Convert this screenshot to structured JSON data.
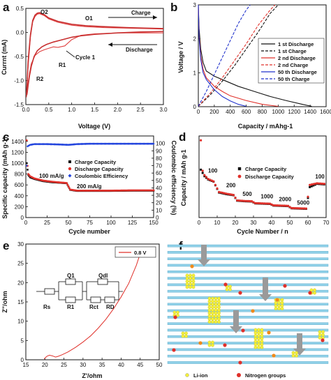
{
  "panels": {
    "a": {
      "letter": "a"
    },
    "b": {
      "letter": "b"
    },
    "c": {
      "letter": "c"
    },
    "d": {
      "letter": "d"
    },
    "e": {
      "letter": "e"
    },
    "f": {
      "letter": "f"
    }
  },
  "chart_data": [
    {
      "id": "a",
      "type": "line",
      "title": "",
      "xlabel": "Voltage (V)",
      "ylabel": "Currnt (mA)",
      "xlim": [
        0,
        3.0
      ],
      "ylim": [
        -1.5,
        0.5
      ],
      "xticks": [
        "0.0",
        "0.5",
        "1.0",
        "1.5",
        "2.0",
        "2.5",
        "3.0"
      ],
      "yticks": [
        "0.5",
        "0.0",
        "-0.5",
        "-1.0",
        "-1.5"
      ],
      "annotations": [
        "O2",
        "O1",
        "Charge",
        "Discharge",
        "R1",
        "R2",
        "Cycle 1"
      ],
      "series": [
        {
          "role": "cycle-1-discharge",
          "color": "#e04040",
          "x": [
            3.0,
            2.5,
            2.0,
            1.5,
            1.2,
            1.0,
            0.85,
            0.7,
            0.6,
            0.5,
            0.4,
            0.3,
            0.2,
            0.12,
            0.08,
            0.05,
            0.03,
            0.01
          ],
          "y": [
            -0.01,
            -0.01,
            -0.01,
            -0.03,
            -0.06,
            -0.15,
            -0.28,
            -0.31,
            -0.3,
            -0.33,
            -0.36,
            -0.4,
            -0.48,
            -0.65,
            -0.85,
            -1.05,
            -1.25,
            -1.35
          ]
        },
        {
          "role": "cycle-1-charge",
          "color": "#e04040",
          "x": [
            0.01,
            0.05,
            0.1,
            0.15,
            0.2,
            0.25,
            0.3,
            0.4,
            0.5,
            0.7,
            1.0,
            1.3,
            1.7,
            2.2,
            2.6,
            3.0
          ],
          "y": [
            -1.3,
            -0.7,
            -0.1,
            0.22,
            0.33,
            0.38,
            0.39,
            0.35,
            0.28,
            0.21,
            0.15,
            0.12,
            0.1,
            0.09,
            0.08,
            0.07
          ]
        },
        {
          "role": "later-cycles-discharge",
          "color": "#c83030",
          "x": [
            3.0,
            2.5,
            2.0,
            1.5,
            1.2,
            1.0,
            0.8,
            0.6,
            0.45,
            0.35,
            0.25,
            0.18,
            0.12,
            0.08,
            0.05,
            0.03,
            0.02
          ],
          "y": [
            0.02,
            0.01,
            -0.01,
            -0.04,
            -0.07,
            -0.1,
            -0.15,
            -0.2,
            -0.25,
            -0.3,
            -0.38,
            -0.5,
            -0.7,
            -0.9,
            -1.1,
            -1.25,
            -1.3
          ]
        },
        {
          "role": "later-cycles-charge",
          "color": "#c83030",
          "x": [
            0.02,
            0.05,
            0.1,
            0.15,
            0.2,
            0.25,
            0.3,
            0.4,
            0.5,
            0.7,
            1.0,
            1.3,
            1.7,
            2.2,
            2.6,
            3.0
          ],
          "y": [
            -1.2,
            -0.6,
            -0.05,
            0.25,
            0.36,
            0.4,
            0.41,
            0.37,
            0.3,
            0.23,
            0.17,
            0.14,
            0.12,
            0.1,
            0.09,
            0.08
          ]
        }
      ]
    },
    {
      "id": "b",
      "type": "line",
      "title": "",
      "xlabel": "Capacity / mAhg-1",
      "ylabel": "Voltage / V",
      "xlim": [
        0,
        1600
      ],
      "ylim": [
        0,
        3
      ],
      "xticks": [
        "0",
        "200",
        "400",
        "600",
        "800",
        "1000",
        "1200",
        "1400",
        "1600"
      ],
      "yticks": [
        "0",
        "1",
        "2",
        "3"
      ],
      "series": [
        {
          "name": "1 st Discharge",
          "color": "#111111",
          "dash": "solid",
          "x": [
            0,
            10,
            30,
            60,
            100,
            200,
            300,
            400,
            500,
            700,
            900,
            1100,
            1300,
            1420
          ],
          "y": [
            3.0,
            2.3,
            1.7,
            1.3,
            1.05,
            0.9,
            0.8,
            0.7,
            0.6,
            0.45,
            0.3,
            0.18,
            0.07,
            0.01
          ]
        },
        {
          "name": "1 st Charge",
          "color": "#111111",
          "dash": "dashed",
          "x": [
            0,
            150,
            300,
            450,
            600,
            750,
            900,
            1000
          ],
          "y": [
            0.01,
            0.35,
            0.75,
            1.2,
            1.7,
            2.2,
            2.75,
            3.0
          ]
        },
        {
          "name": "2 nd Discharge",
          "color": "#e0302a",
          "dash": "solid",
          "x": [
            0,
            10,
            30,
            60,
            100,
            200,
            300,
            400,
            600,
            800,
            1000
          ],
          "y": [
            3.0,
            2.1,
            1.5,
            1.1,
            0.85,
            0.6,
            0.45,
            0.32,
            0.18,
            0.07,
            0.01
          ]
        },
        {
          "name": "2 nd Charge",
          "color": "#e0302a",
          "dash": "dashed",
          "x": [
            0,
            150,
            300,
            450,
            600,
            750,
            900,
            960
          ],
          "y": [
            0.01,
            0.4,
            0.85,
            1.35,
            1.85,
            2.4,
            2.85,
            3.0
          ]
        },
        {
          "name": "50 th Discharge",
          "color": "#2233cc",
          "dash": "solid",
          "x": [
            0,
            10,
            30,
            60,
            100,
            200,
            300,
            400,
            500,
            600
          ],
          "y": [
            3.0,
            2.0,
            1.4,
            1.0,
            0.8,
            0.5,
            0.3,
            0.17,
            0.07,
            0.01
          ]
        },
        {
          "name": "50 th Charge",
          "color": "#2233cc",
          "dash": "dashed",
          "x": [
            0,
            100,
            200,
            300,
            400,
            500,
            600,
            650
          ],
          "y": [
            0.01,
            0.45,
            0.95,
            1.45,
            1.95,
            2.45,
            2.85,
            3.0
          ]
        }
      ]
    },
    {
      "id": "c",
      "type": "scatter",
      "title": "",
      "xlabel": "Cycle number",
      "ylabel": "Specific capacity (mAh g-1)",
      "ylabel_right": "Coulombic efficiency (%)",
      "xlim": [
        0,
        150
      ],
      "ylim": [
        0,
        1500
      ],
      "ylim_right": [
        0,
        110
      ],
      "xticks": [
        "0",
        "25",
        "50",
        "75",
        "100",
        "125",
        "150"
      ],
      "yticks": [
        "0",
        "200",
        "400",
        "600",
        "800",
        "1000",
        "1200",
        "1400"
      ],
      "yticks_right": [
        "0",
        "10",
        "20",
        "30",
        "40",
        "50",
        "60",
        "70",
        "80",
        "90",
        "100"
      ],
      "annotations": [
        "100 mA/g",
        "200 mA/g"
      ],
      "series": [
        {
          "name": "Charge Capacity",
          "color": "#111111",
          "marker": "square",
          "x": [
            1,
            2,
            3,
            5,
            10,
            20,
            30,
            40,
            48,
            52,
            60,
            75,
            100,
            125,
            150
          ],
          "y": [
            1000,
            880,
            780,
            740,
            710,
            670,
            650,
            640,
            630,
            510,
            490,
            490,
            490,
            495,
            495
          ]
        },
        {
          "name": "Discharge Capacity",
          "color": "#e0302a",
          "marker": "circle",
          "x": [
            1,
            2,
            3,
            5,
            10,
            20,
            30,
            40,
            48,
            52,
            60,
            75,
            100,
            125,
            150
          ],
          "y": [
            1420,
            950,
            800,
            760,
            720,
            680,
            660,
            645,
            635,
            515,
            495,
            495,
            495,
            500,
            500
          ]
        },
        {
          "name": "Coulombic Efficiency",
          "color": "#2244dd",
          "marker": "diamond",
          "axis": "right",
          "x": [
            1,
            2,
            5,
            10,
            25,
            40,
            50,
            60,
            75,
            100,
            125,
            150
          ],
          "y": [
            70,
            96,
            98,
            99,
            99,
            98.5,
            98,
            99,
            99.5,
            99.5,
            99.5,
            99.5
          ]
        }
      ]
    },
    {
      "id": "d",
      "type": "scatter",
      "title": "",
      "xlabel": "Cycle Number / n",
      "ylabel": "Capacity / mAh g-1",
      "xlim": [
        0,
        70
      ],
      "ylim": [
        0,
        1500
      ],
      "xticks": [
        "0",
        "10",
        "20",
        "30",
        "40",
        "50",
        "60",
        "70"
      ],
      "annotations": [
        "100",
        "200",
        "500",
        "1000",
        "2000",
        "5000",
        "100"
      ],
      "series": [
        {
          "name": "Charge Capacity",
          "color": "#111111",
          "marker": "square",
          "x": [
            1,
            2,
            3,
            5,
            8,
            11,
            15,
            19,
            21,
            25,
            29,
            31,
            35,
            39,
            41,
            45,
            49,
            51,
            55,
            59,
            61,
            65,
            69
          ],
          "y": [
            880,
            820,
            760,
            700,
            660,
            460,
            430,
            410,
            310,
            300,
            295,
            260,
            255,
            250,
            220,
            215,
            210,
            170,
            165,
            160,
            560,
            620,
            610
          ]
        },
        {
          "name": "Discharge Capacity",
          "color": "#e0302a",
          "marker": "circle",
          "x": [
            1,
            2,
            3,
            5,
            8,
            11,
            15,
            19,
            21,
            25,
            29,
            31,
            35,
            39,
            41,
            45,
            49,
            51,
            55,
            59,
            61,
            65,
            69
          ],
          "y": [
            1420,
            860,
            780,
            710,
            665,
            470,
            440,
            415,
            315,
            305,
            300,
            265,
            260,
            255,
            225,
            220,
            215,
            175,
            170,
            165,
            600,
            630,
            620
          ]
        }
      ]
    },
    {
      "id": "e",
      "type": "line",
      "title": "",
      "xlabel": "Z'/ohm",
      "ylabel": "Z\"/ohm",
      "xlim": [
        15,
        50
      ],
      "ylim": [
        0,
        30
      ],
      "xticks": [
        "15",
        "20",
        "25",
        "30",
        "35",
        "40",
        "45",
        "50"
      ],
      "yticks": [
        "0",
        "5",
        "10",
        "15",
        "20",
        "25",
        "30"
      ],
      "circuit_labels": [
        "Q1",
        "Qdl",
        "Rs",
        "R1",
        "Rct",
        "RD"
      ],
      "series": [
        {
          "name": "0.8 V",
          "color": "#e0302a",
          "x": [
            19.8,
            20.5,
            21.2,
            22.0,
            22.8,
            23.5,
            24.5,
            26,
            28,
            30,
            32,
            34,
            36,
            38,
            40,
            42,
            44,
            45
          ],
          "y": [
            0.2,
            0.9,
            1.2,
            1.0,
            0.7,
            0.9,
            1.3,
            2.0,
            3.2,
            4.6,
            6.2,
            8.2,
            10.5,
            13.2,
            16.3,
            19.8,
            24.5,
            27.5
          ]
        }
      ]
    }
  ],
  "schematic": {
    "legend": {
      "li_label": "Li-ion",
      "n_label": "Nitrogen groups"
    },
    "colors": {
      "layer": "#8fd0e8",
      "layer_edge": "#5aa9c9",
      "li": "#f3ef3a",
      "n_red": "#e0302a",
      "n_orange": "#f08a1a",
      "arrow": "#9a9a9a"
    }
  }
}
